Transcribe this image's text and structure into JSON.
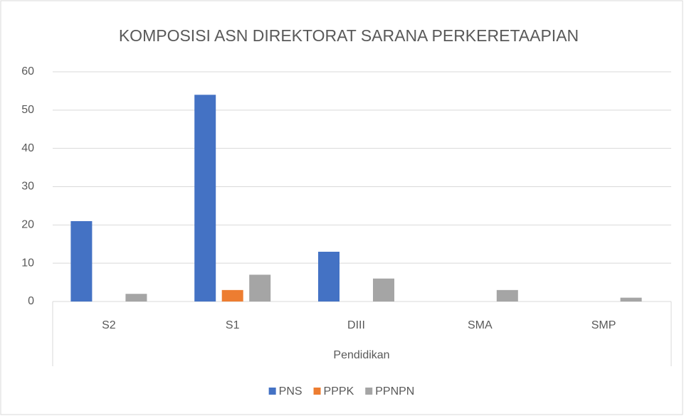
{
  "chart_data": {
    "type": "bar",
    "title": "KOMPOSISI ASN DIREKTORAT SARANA PERKERETAAPIAN",
    "x_label": "Pendidikan",
    "categories": [
      "S2",
      "S1",
      "DIII",
      "SMA",
      "SMP"
    ],
    "series": [
      {
        "name": "PNS",
        "color": "#4472c4",
        "values": [
          21,
          54,
          13,
          0,
          0
        ]
      },
      {
        "name": "PPPK",
        "color": "#ed7d31",
        "values": [
          0,
          3,
          0,
          0,
          0
        ]
      },
      {
        "name": "PPNPN",
        "color": "#a5a5a5",
        "values": [
          2,
          7,
          6,
          3,
          1
        ]
      }
    ],
    "ylim": [
      0,
      60
    ],
    "yticks": [
      0,
      10,
      20,
      30,
      40,
      50,
      60
    ],
    "grid": true,
    "legend": "bottom"
  }
}
